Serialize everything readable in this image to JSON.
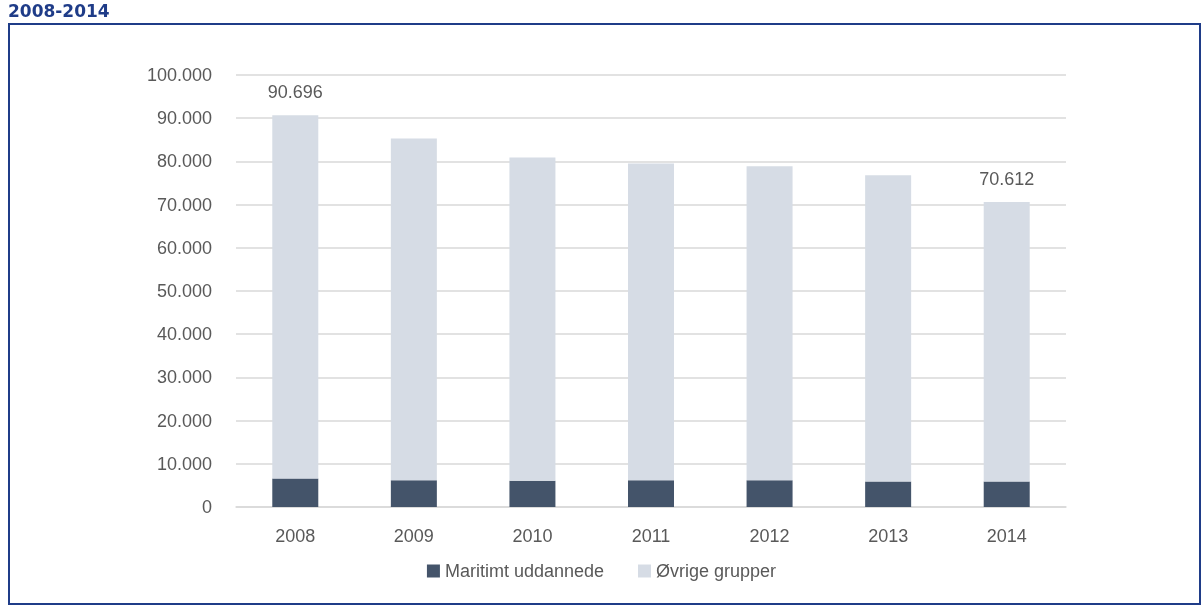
{
  "chart_data": {
    "type": "bar",
    "title": "2008-2014",
    "categories": [
      "2008",
      "2009",
      "2010",
      "2011",
      "2012",
      "2013",
      "2014"
    ],
    "series": [
      {
        "name": "Maritimt uddannede",
        "color": "#44546a",
        "values": [
          6600,
          6200,
          6100,
          6200,
          6200,
          5900,
          5900
        ]
      },
      {
        "name": "Øvrige grupper",
        "color": "#d6dce5",
        "values": [
          84096,
          79100,
          74800,
          73300,
          72700,
          70900,
          64712
        ]
      }
    ],
    "stacked": true,
    "totals": [
      "90.696",
      null,
      null,
      null,
      null,
      null,
      "70.612"
    ],
    "ylim": [
      0,
      100000
    ],
    "yticks": [
      0,
      {
        "value": 10000,
        "label": "10.000"
      },
      {
        "value": 20000,
        "label": "20.000"
      },
      {
        "value": 30000,
        "label": "30.000"
      },
      {
        "value": 40000,
        "label": "40.000"
      },
      {
        "value": 50000,
        "label": "50.000"
      },
      {
        "value": 60000,
        "label": "60.000"
      },
      {
        "value": 70000,
        "label": "70.000"
      },
      {
        "value": 80000,
        "label": "80.000"
      },
      {
        "value": 90000,
        "label": "90.000"
      },
      {
        "value": 100000,
        "label": "100.000"
      }
    ],
    "grid": "y",
    "legend": "bottom"
  }
}
